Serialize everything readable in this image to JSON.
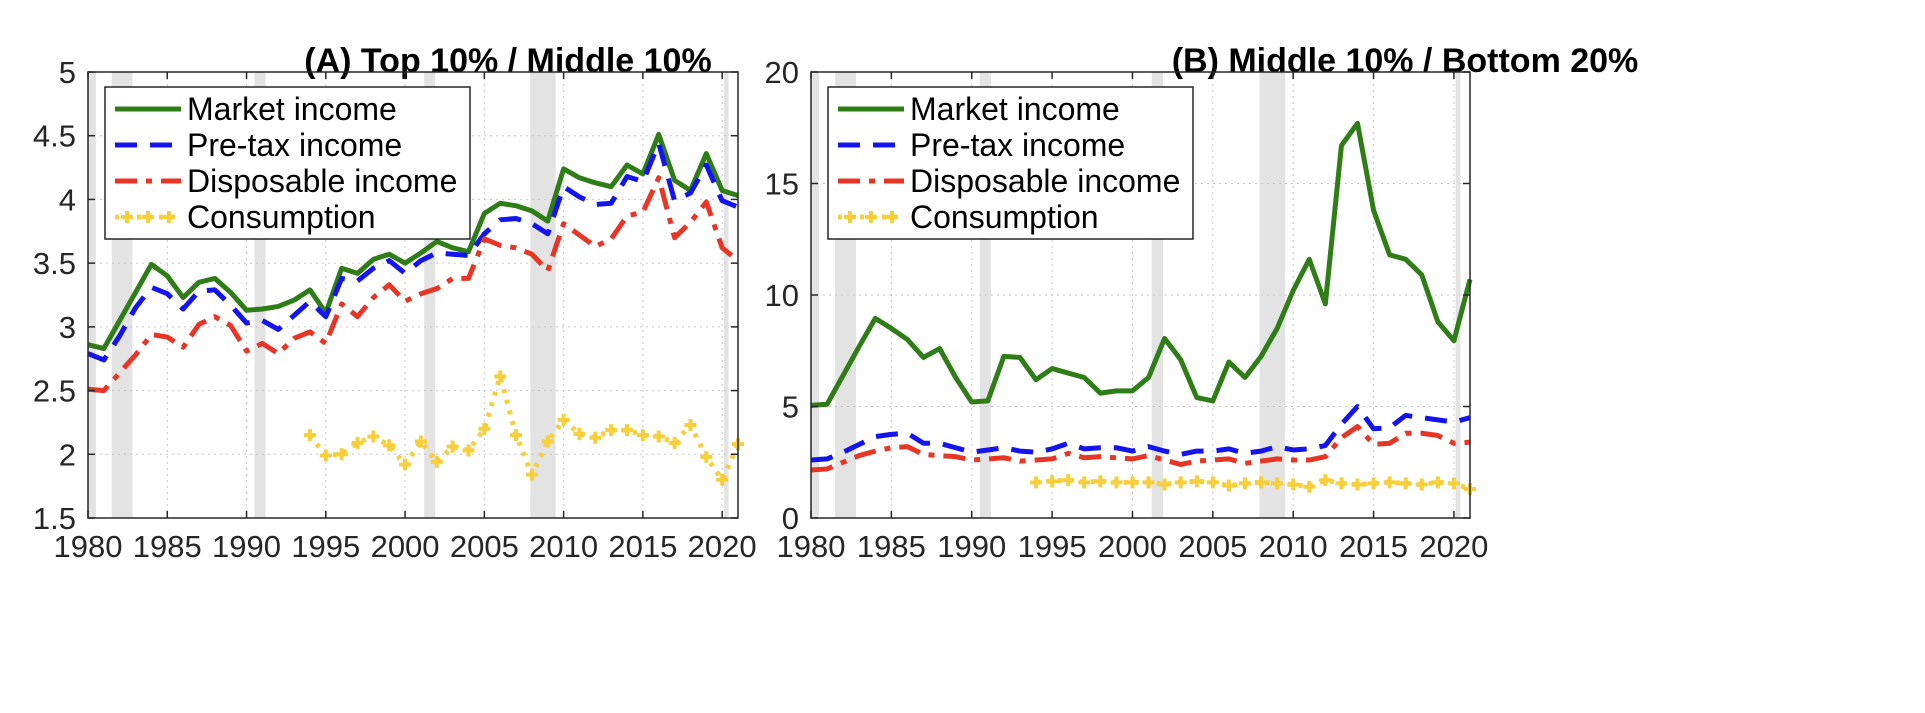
{
  "colors": {
    "market": "#2f7d16",
    "pretax": "#1414f0",
    "disposable": "#e83526",
    "consumption": "#f6cf3a",
    "recession": "#e3e3e3"
  },
  "chart_data": [
    {
      "type": "line",
      "title": "(A) Top 10% / Middle 10%",
      "xlabel": "",
      "ylabel": "",
      "xlim": [
        1980,
        2021
      ],
      "ylim": [
        1.5,
        5
      ],
      "xticks": [
        1980,
        1985,
        1990,
        1995,
        2000,
        2005,
        2010,
        2015,
        2020
      ],
      "yticks": [
        1.5,
        2,
        2.5,
        3,
        3.5,
        4,
        4.5,
        5
      ],
      "ytick_labels": [
        "1.5",
        "2",
        "2.5",
        "3",
        "3.5",
        "4",
        "4.5",
        "5"
      ],
      "grid": true,
      "legend_position": "top-left",
      "recession_bands": [
        [
          1980.0,
          1980.5
        ],
        [
          1981.5,
          1982.8
        ],
        [
          1990.5,
          1991.2
        ],
        [
          2001.2,
          2001.9
        ],
        [
          2007.9,
          2009.5
        ],
        [
          2020.1,
          2020.4
        ]
      ],
      "series": [
        {
          "name": "Market income",
          "key": "market",
          "style": "solid",
          "x": [
            1980,
            1981,
            1982,
            1983,
            1984,
            1985,
            1986,
            1987,
            1988,
            1989,
            1990,
            1991,
            1992,
            1993,
            1994,
            1995,
            1996,
            1997,
            1998,
            1999,
            2000,
            2001,
            2002,
            2003,
            2004,
            2005,
            2006,
            2007,
            2008,
            2009,
            2010,
            2011,
            2012,
            2013,
            2014,
            2015,
            2016,
            2017,
            2018,
            2019,
            2020,
            2021
          ],
          "values": [
            2.86,
            2.83,
            3.05,
            3.27,
            3.49,
            3.4,
            3.23,
            3.35,
            3.38,
            3.27,
            3.13,
            3.14,
            3.16,
            3.21,
            3.29,
            3.11,
            3.46,
            3.42,
            3.53,
            3.57,
            3.5,
            3.58,
            3.67,
            3.62,
            3.59,
            3.89,
            3.97,
            3.95,
            3.91,
            3.83,
            4.24,
            4.17,
            4.13,
            4.1,
            4.27,
            4.2,
            4.51,
            4.15,
            4.07,
            4.36,
            4.07,
            4.03
          ]
        },
        {
          "name": "Pre-tax income",
          "key": "pretax",
          "style": "dashed",
          "x": [
            1980,
            1981,
            1982,
            1983,
            1984,
            1985,
            1986,
            1987,
            1988,
            1989,
            1990,
            1991,
            1992,
            1993,
            1994,
            1995,
            1996,
            1997,
            1998,
            1999,
            2000,
            2001,
            2002,
            2003,
            2004,
            2005,
            2006,
            2007,
            2008,
            2009,
            2010,
            2011,
            2012,
            2013,
            2014,
            2015,
            2016,
            2017,
            2018,
            2019,
            2020,
            2021
          ],
          "values": [
            2.79,
            2.74,
            2.93,
            3.15,
            3.31,
            3.26,
            3.14,
            3.28,
            3.29,
            3.17,
            3.03,
            3.05,
            2.98,
            3.09,
            3.2,
            3.08,
            3.38,
            3.36,
            3.46,
            3.52,
            3.42,
            3.52,
            3.58,
            3.57,
            3.56,
            3.73,
            3.84,
            3.85,
            3.81,
            3.73,
            4.1,
            4.02,
            3.96,
            3.97,
            4.18,
            4.14,
            4.44,
            3.99,
            4.05,
            4.27,
            3.99,
            3.94
          ]
        },
        {
          "name": "Disposable income",
          "key": "disposable",
          "style": "dashdot",
          "x": [
            1980,
            1981,
            1982,
            1983,
            1984,
            1985,
            1986,
            1987,
            1988,
            1989,
            1990,
            1991,
            1992,
            1993,
            1994,
            1995,
            1996,
            1997,
            1998,
            1999,
            2000,
            2001,
            2002,
            2003,
            2004,
            2005,
            2006,
            2007,
            2008,
            2009,
            2010,
            2011,
            2012,
            2013,
            2014,
            2015,
            2016,
            2017,
            2018,
            2019,
            2020,
            2021
          ],
          "values": [
            2.51,
            2.5,
            2.64,
            2.78,
            2.94,
            2.92,
            2.84,
            3.02,
            3.08,
            3.01,
            2.81,
            2.87,
            2.79,
            2.91,
            2.96,
            2.87,
            3.18,
            3.08,
            3.23,
            3.33,
            3.2,
            3.26,
            3.3,
            3.38,
            3.38,
            3.69,
            3.64,
            3.62,
            3.57,
            3.44,
            3.81,
            3.72,
            3.63,
            3.69,
            3.87,
            3.9,
            4.17,
            3.7,
            3.82,
            3.98,
            3.62,
            3.52
          ]
        },
        {
          "name": "Consumption",
          "key": "consumption",
          "style": "dotted-marker",
          "x": [
            1994,
            1995,
            1996,
            1997,
            1998,
            1999,
            2000,
            2001,
            2002,
            2003,
            2004,
            2005,
            2006,
            2007,
            2008,
            2009,
            2010,
            2011,
            2012,
            2013,
            2014,
            2015,
            2016,
            2017,
            2018,
            2019,
            2020,
            2021
          ],
          "values": [
            2.15,
            1.99,
            2.0,
            2.09,
            2.14,
            2.07,
            1.92,
            2.1,
            1.94,
            2.06,
            2.03,
            2.2,
            2.61,
            2.15,
            1.84,
            2.1,
            2.27,
            2.16,
            2.13,
            2.19,
            2.19,
            2.15,
            2.14,
            2.09,
            2.23,
            1.98,
            1.8,
            2.08
          ]
        }
      ]
    },
    {
      "type": "line",
      "title": "(B) Middle 10% / Bottom 20%",
      "xlabel": "",
      "ylabel": "",
      "xlim": [
        1980,
        2021
      ],
      "ylim": [
        0,
        20
      ],
      "xticks": [
        1980,
        1985,
        1990,
        1995,
        2000,
        2005,
        2010,
        2015,
        2020
      ],
      "yticks": [
        0,
        5,
        10,
        15,
        20
      ],
      "ytick_labels": [
        "0",
        "5",
        "10",
        "15",
        "20"
      ],
      "grid": true,
      "legend_position": "top-left",
      "recession_bands": [
        [
          1980.0,
          1980.5
        ],
        [
          1981.5,
          1982.8
        ],
        [
          1990.5,
          1991.2
        ],
        [
          2001.2,
          2001.9
        ],
        [
          2007.9,
          2009.5
        ],
        [
          2020.1,
          2020.4
        ]
      ],
      "series": [
        {
          "name": "Market income",
          "key": "market",
          "style": "solid",
          "x": [
            1980,
            1981,
            1982,
            1983,
            1984,
            1985,
            1986,
            1987,
            1988,
            1989,
            1990,
            1991,
            1992,
            1993,
            1994,
            1995,
            1996,
            1997,
            1998,
            1999,
            2000,
            2001,
            2002,
            2003,
            2004,
            2005,
            2006,
            2007,
            2008,
            2009,
            2010,
            2011,
            2012,
            2013,
            2014,
            2015,
            2016,
            2017,
            2018,
            2019,
            2020,
            2021
          ],
          "values": [
            5.05,
            5.1,
            6.4,
            7.7,
            8.95,
            8.5,
            8.0,
            7.2,
            7.6,
            6.3,
            5.2,
            5.25,
            7.25,
            7.2,
            6.2,
            6.7,
            6.5,
            6.3,
            5.6,
            5.7,
            5.7,
            6.3,
            8.05,
            7.1,
            5.4,
            5.25,
            7.0,
            6.3,
            7.25,
            8.5,
            10.2,
            11.6,
            9.6,
            16.7,
            17.7,
            13.8,
            11.8,
            11.6,
            10.9,
            8.8,
            7.95,
            10.7
          ]
        },
        {
          "name": "Pre-tax income",
          "key": "pretax",
          "style": "dashed",
          "x": [
            1980,
            1981,
            1982,
            1983,
            1984,
            1985,
            1986,
            1987,
            1988,
            1989,
            1990,
            1991,
            1992,
            1993,
            1994,
            1995,
            1996,
            1997,
            1998,
            1999,
            2000,
            2001,
            2002,
            2003,
            2004,
            2005,
            2006,
            2007,
            2008,
            2009,
            2010,
            2011,
            2012,
            2013,
            2014,
            2015,
            2016,
            2017,
            2018,
            2019,
            2020,
            2021
          ],
          "values": [
            2.6,
            2.65,
            2.95,
            3.3,
            3.65,
            3.75,
            3.8,
            3.35,
            3.35,
            3.15,
            2.95,
            3.05,
            3.15,
            3.0,
            2.95,
            3.1,
            3.35,
            3.1,
            3.15,
            3.15,
            3.0,
            3.2,
            3.0,
            2.85,
            3.0,
            3.0,
            3.1,
            2.9,
            3.0,
            3.2,
            3.05,
            3.1,
            3.25,
            4.2,
            5.0,
            4.0,
            4.05,
            4.6,
            4.5,
            4.4,
            4.3,
            4.5
          ]
        },
        {
          "name": "Disposable income",
          "key": "disposable",
          "style": "dashdot",
          "x": [
            1980,
            1981,
            1982,
            1983,
            1984,
            1985,
            1986,
            1987,
            1988,
            1989,
            1990,
            1991,
            1992,
            1993,
            1994,
            1995,
            1996,
            1997,
            1998,
            1999,
            2000,
            2001,
            2002,
            2003,
            2004,
            2005,
            2006,
            2007,
            2008,
            2009,
            2010,
            2011,
            2012,
            2013,
            2014,
            2015,
            2016,
            2017,
            2018,
            2019,
            2020,
            2021
          ],
          "values": [
            2.15,
            2.2,
            2.5,
            2.8,
            3.0,
            3.15,
            3.2,
            2.85,
            2.8,
            2.75,
            2.6,
            2.65,
            2.7,
            2.55,
            2.6,
            2.65,
            2.9,
            2.7,
            2.75,
            2.7,
            2.65,
            2.8,
            2.6,
            2.4,
            2.55,
            2.6,
            2.65,
            2.45,
            2.55,
            2.65,
            2.6,
            2.6,
            2.75,
            3.6,
            4.1,
            3.3,
            3.35,
            3.8,
            3.8,
            3.7,
            3.35,
            3.4
          ]
        },
        {
          "name": "Consumption",
          "key": "consumption",
          "style": "dotted-marker",
          "x": [
            1994,
            1995,
            1996,
            1997,
            1998,
            1999,
            2000,
            2001,
            2002,
            2003,
            2004,
            2005,
            2006,
            2007,
            2008,
            2009,
            2010,
            2011,
            2012,
            2013,
            2014,
            2015,
            2016,
            2017,
            2018,
            2019,
            2020,
            2021
          ],
          "values": [
            1.6,
            1.65,
            1.7,
            1.6,
            1.65,
            1.6,
            1.6,
            1.6,
            1.5,
            1.6,
            1.65,
            1.6,
            1.45,
            1.55,
            1.6,
            1.55,
            1.5,
            1.4,
            1.7,
            1.55,
            1.5,
            1.55,
            1.6,
            1.55,
            1.5,
            1.6,
            1.55,
            1.3
          ]
        }
      ]
    }
  ]
}
